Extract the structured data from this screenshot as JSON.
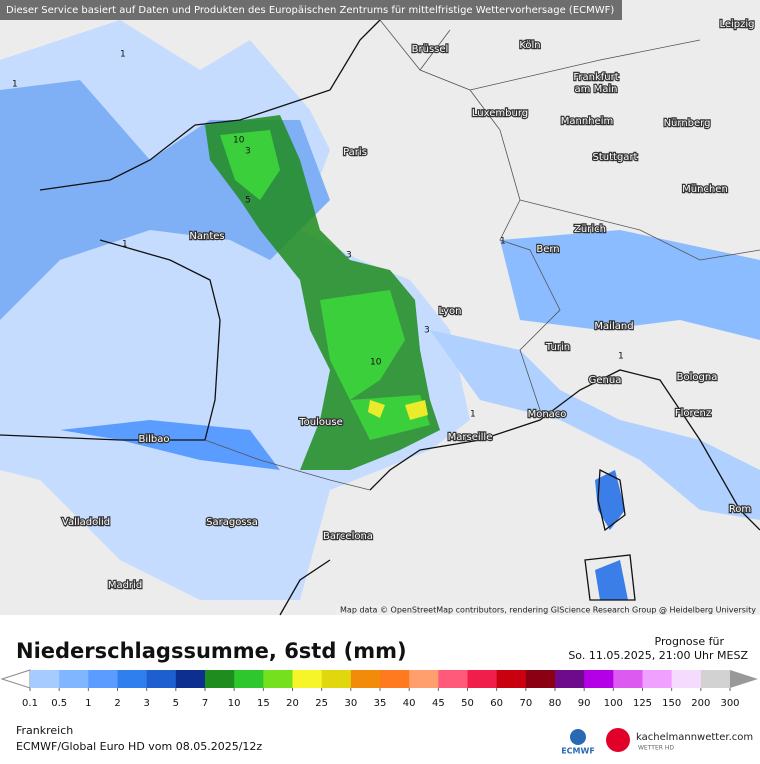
{
  "header": {
    "notice": "Dieser Service basiert auf Daten und Produkten des Europäischen Zentrums für mittelfristige Wettervorhersage (ECMWF)"
  },
  "map": {
    "attribution": "Map data © OpenStreetMap contributors, rendering GIScience Research Group @ Heidelberg University",
    "cities": [
      "Brüssel",
      "Köln",
      "Leipzig",
      "Frankfurt",
      "am Main",
      "Luxemburg",
      "Mannheim",
      "Nürnberg",
      "Paris",
      "Stuttgart",
      "München",
      "Nantes",
      "Bern",
      "Zürich",
      "Lyon",
      "Mailand",
      "Turin",
      "Bologna",
      "Genua",
      "Monaco",
      "Florenz",
      "Marseille",
      "Toulouse",
      "Bilbao",
      "Valladolid",
      "Saragossa",
      "Barcelona",
      "Rom",
      "Madrid"
    ],
    "contour_labels": [
      "1",
      "1",
      "3",
      "10",
      "5",
      "3",
      "10",
      "1",
      "1",
      "3",
      "1",
      "1"
    ]
  },
  "legend": {
    "title": "Niederschlagssumme, 6std (mm)",
    "forecast_label": "Prognose für",
    "forecast_time": "So. 11.05.2025, 21:00 Uhr MESZ",
    "ticks": [
      0.1,
      0.5,
      1,
      2,
      3,
      5,
      7,
      10,
      15,
      20,
      25,
      30,
      35,
      40,
      45,
      50,
      60,
      70,
      80,
      90,
      100,
      125,
      150,
      200,
      300
    ],
    "colors": [
      "#a6ccff",
      "#7fb6ff",
      "#5a9cff",
      "#2f7fef",
      "#1d5fd0",
      "#0d2f8f",
      "#1e8c1e",
      "#2ec82e",
      "#74e01e",
      "#f5f52a",
      "#e0d70f",
      "#f28a0a",
      "#ff7a1e",
      "#ff9f6e",
      "#ff5a7a",
      "#f01e4a",
      "#c8000f",
      "#8c0014",
      "#6e0a8c",
      "#b400e6",
      "#dc5af0",
      "#f0a0ff",
      "#f5dcff",
      "#d2d2d2"
    ]
  },
  "footer": {
    "region": "Frankreich",
    "model": "ECMWF/Global Euro HD vom  08.05.2025/12z",
    "ecmwf": "ECMWF",
    "site": "kachelmannwetter.com",
    "site_sub": "WETTER HD"
  }
}
